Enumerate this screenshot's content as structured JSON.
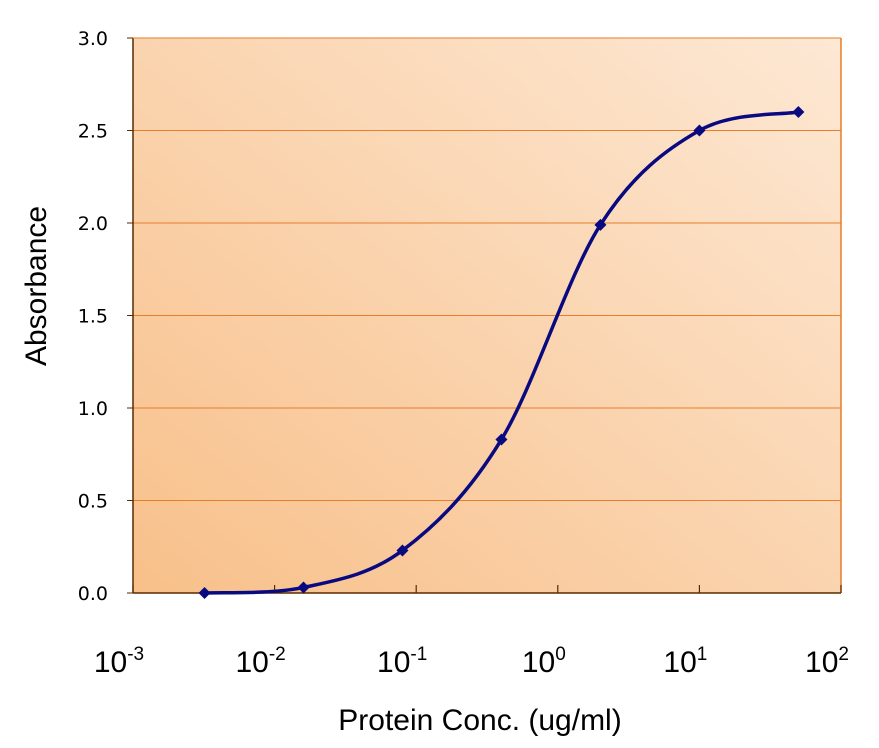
{
  "chart_data": {
    "type": "line",
    "title": "",
    "xlabel": "Protein Conc. (ug/ml)",
    "ylabel": "Absorbance",
    "xscale": "log",
    "xlim": [
      0.001,
      100
    ],
    "ylim": [
      0,
      3.0
    ],
    "grid": "horizontal",
    "legend": "none",
    "x_ticks": [
      {
        "base": "10",
        "exp": "-3",
        "value": 0.001
      },
      {
        "base": "10",
        "exp": "-2",
        "value": 0.01
      },
      {
        "base": "10",
        "exp": "-1",
        "value": 0.1
      },
      {
        "base": "10",
        "exp": "0",
        "value": 1
      },
      {
        "base": "10",
        "exp": "1",
        "value": 10
      },
      {
        "base": "10",
        "exp": "2",
        "value": 100
      }
    ],
    "y_ticks": [
      "0.0",
      "0.5",
      "1.0",
      "1.5",
      "2.0",
      "2.5",
      "3.0"
    ],
    "series": [
      {
        "name": "Absorbance",
        "marker": "diamond",
        "smooth": true,
        "x": [
          0.0032,
          0.016,
          0.08,
          0.4,
          2.0,
          10,
          50
        ],
        "y": [
          0.0,
          0.03,
          0.23,
          0.83,
          1.99,
          2.5,
          2.6
        ]
      }
    ],
    "colors": {
      "line": "#0a0a80",
      "gridline": "#e87d2a",
      "axis": "#5a2a00",
      "plot_bg_dark": "#f8c08a",
      "plot_bg_light": "#fde8d4"
    }
  }
}
